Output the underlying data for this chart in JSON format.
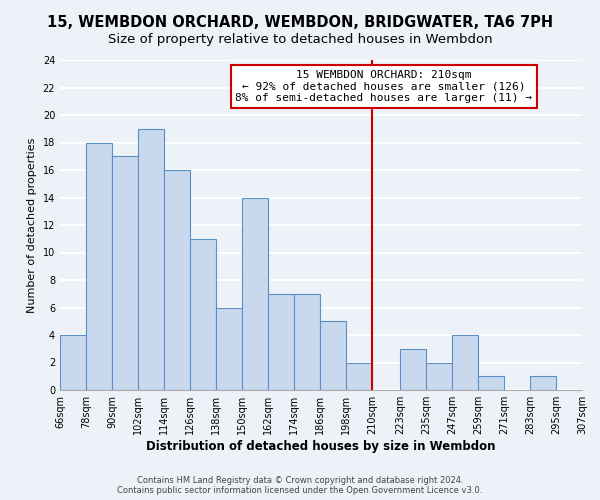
{
  "title": "15, WEMBDON ORCHARD, WEMBDON, BRIDGWATER, TA6 7PH",
  "subtitle": "Size of property relative to detached houses in Wembdon",
  "xlabel": "Distribution of detached houses by size in Wembdon",
  "ylabel": "Number of detached properties",
  "bin_edges": [
    66,
    78,
    90,
    102,
    114,
    126,
    138,
    150,
    162,
    174,
    186,
    198,
    210,
    223,
    235,
    247,
    259,
    271,
    283,
    295,
    307
  ],
  "counts": [
    4,
    18,
    17,
    19,
    16,
    11,
    6,
    14,
    7,
    7,
    5,
    2,
    0,
    3,
    2,
    4,
    1,
    0,
    1,
    0
  ],
  "bar_color": "#c8d9ee",
  "bar_edge_color": "#5b8fc7",
  "vline_x": 210,
  "vline_color": "#cc0000",
  "annotation_line1": "15 WEMBDON ORCHARD: 210sqm",
  "annotation_line2": "← 92% of detached houses are smaller (126)",
  "annotation_line3": "8% of semi-detached houses are larger (11) →",
  "ylim": [
    0,
    24
  ],
  "yticks": [
    0,
    2,
    4,
    6,
    8,
    10,
    12,
    14,
    16,
    18,
    20,
    22,
    24
  ],
  "x_tick_labels": [
    "66sqm",
    "78sqm",
    "90sqm",
    "102sqm",
    "114sqm",
    "126sqm",
    "138sqm",
    "150sqm",
    "162sqm",
    "174sqm",
    "186sqm",
    "198sqm",
    "210sqm",
    "223sqm",
    "235sqm",
    "247sqm",
    "259sqm",
    "271sqm",
    "283sqm",
    "295sqm",
    "307sqm"
  ],
  "footer1": "Contains HM Land Registry data © Crown copyright and database right 2024.",
  "footer2": "Contains public sector information licensed under the Open Government Licence v3.0.",
  "background_color": "#edf2f9",
  "grid_color": "#ffffff",
  "title_fontsize": 10.5,
  "subtitle_fontsize": 9.5,
  "axis_label_fontsize": 8.5,
  "ylabel_fontsize": 8,
  "tick_fontsize": 7,
  "annotation_fontsize": 8,
  "footer_fontsize": 6
}
